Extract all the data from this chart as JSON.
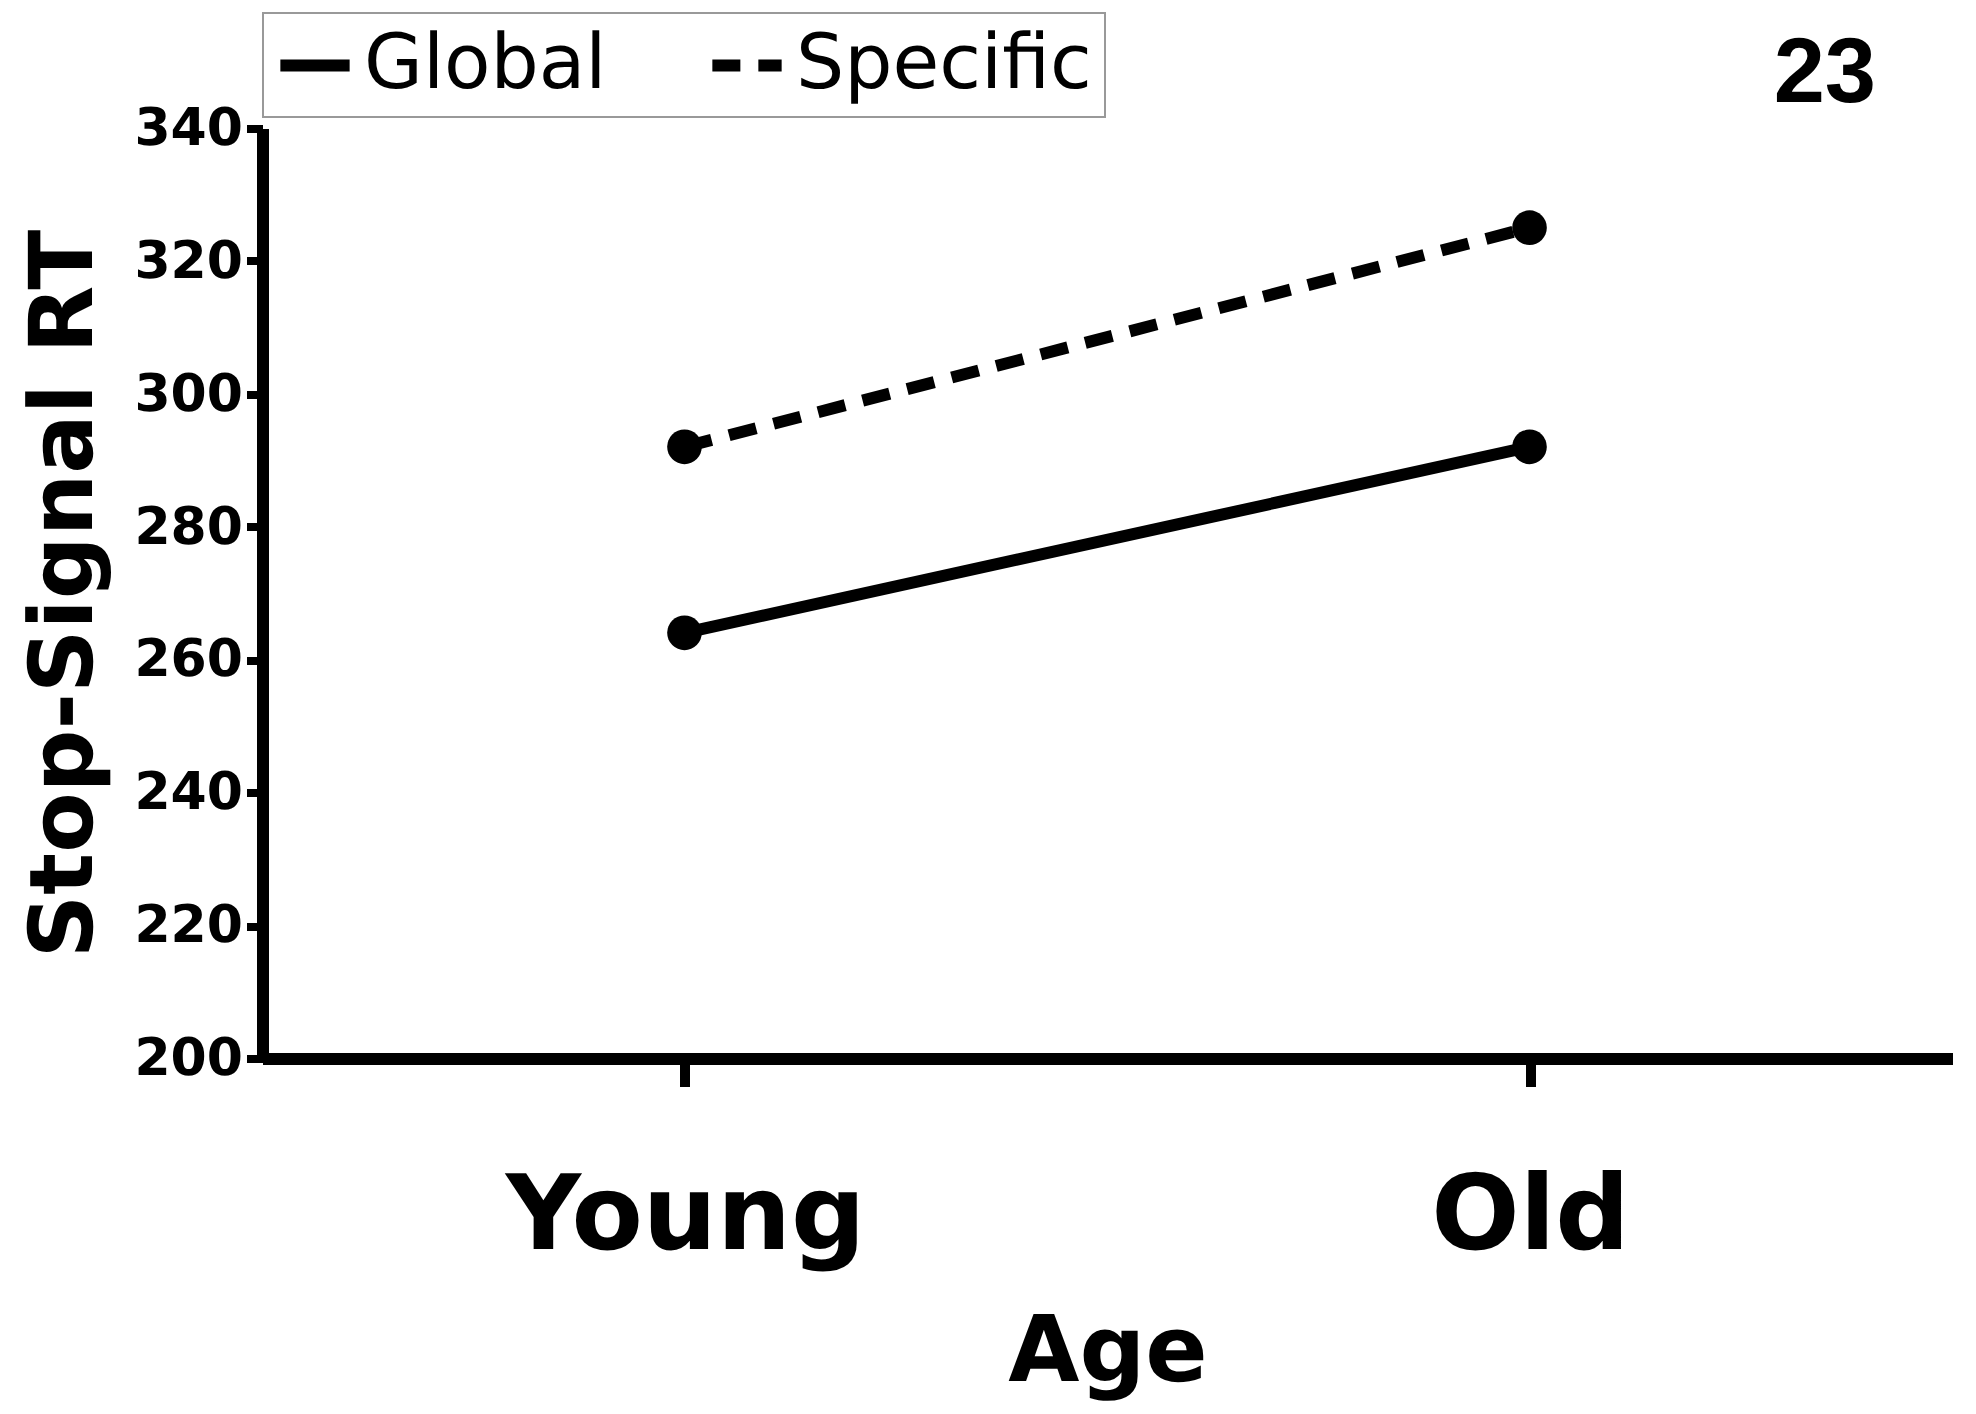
{
  "chart_data": {
    "type": "line",
    "xlabel": "Age",
    "ylabel": "Stop-Signal RT",
    "categories": [
      "Young",
      "Old"
    ],
    "series": [
      {
        "name": "Global",
        "color": "#000000",
        "values": [
          264,
          292
        ],
        "line_style": "solid"
      },
      {
        "name": "Specific",
        "color": "#000000",
        "values": [
          292,
          325
        ],
        "line_style": "dashed"
      }
    ],
    "ylim": [
      200,
      340
    ],
    "yticks": [
      200,
      220,
      240,
      260,
      280,
      300,
      320,
      340
    ],
    "grid": false,
    "legend": "top",
    "marker": "circle",
    "annotations": [
      "23"
    ]
  }
}
